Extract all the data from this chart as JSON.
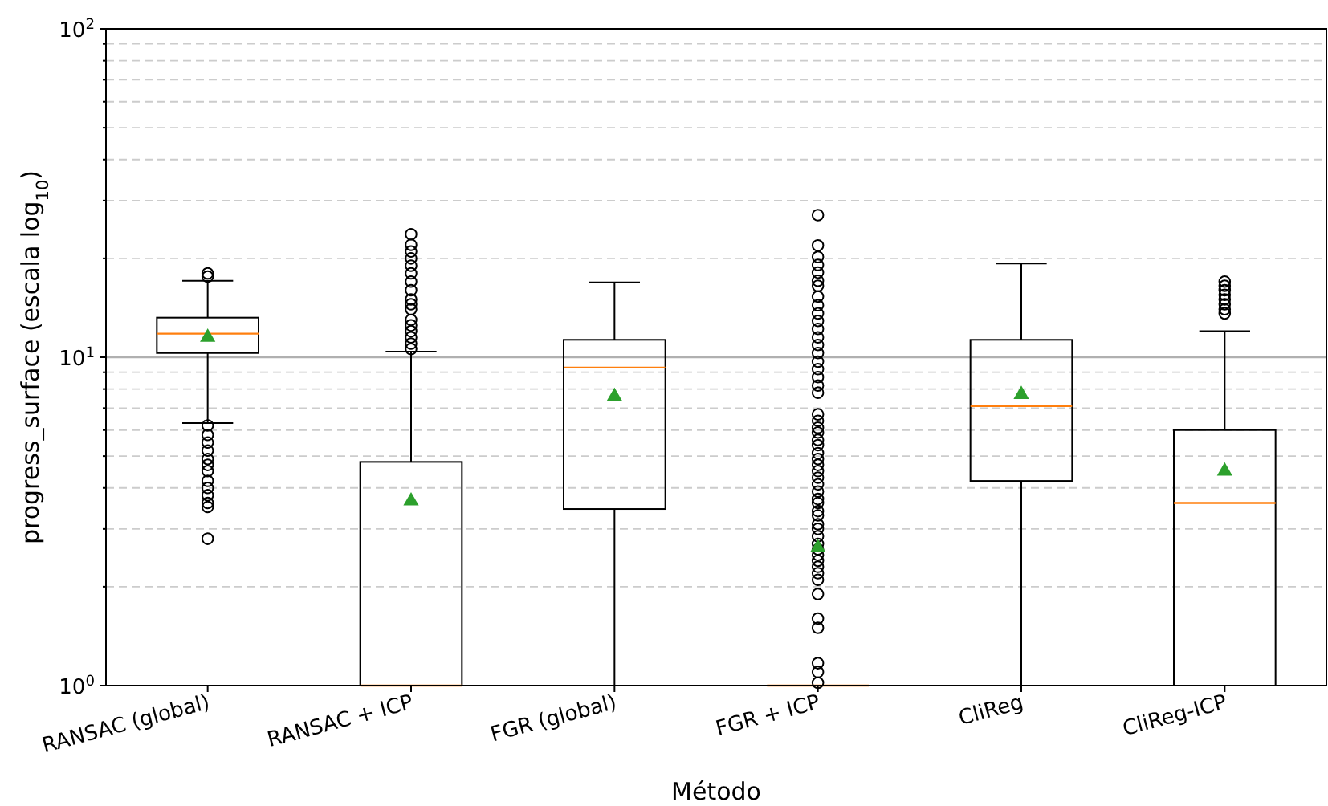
{
  "chart_data": {
    "type": "box",
    "xlabel": "Método",
    "ylabel": "progress_surface (escala log$_{10}$)",
    "categories": [
      "RANSAC (global)",
      "RANSAC + ICP",
      "FGR (global)",
      "FGR + ICP",
      "CliReg",
      "CliReg-ICP"
    ],
    "log": "y",
    "ylim": [
      1,
      100
    ],
    "yticks": [
      {
        "value": 1,
        "label": "10$^{0}$"
      },
      {
        "value": 2,
        "label": null
      },
      {
        "value": 3,
        "label": null
      },
      {
        "value": 4,
        "label": null
      },
      {
        "value": 5,
        "label": null
      },
      {
        "value": 6,
        "label": null
      },
      {
        "value": 7,
        "label": null
      },
      {
        "value": 8,
        "label": null
      },
      {
        "value": 9,
        "label": null
      },
      {
        "value": 10,
        "label": "10$^{1}$"
      },
      {
        "value": 20,
        "label": null
      },
      {
        "value": 30,
        "label": null
      },
      {
        "value": 40,
        "label": null
      },
      {
        "value": 50,
        "label": null
      },
      {
        "value": 60,
        "label": null
      },
      {
        "value": 70,
        "label": null
      },
      {
        "value": 80,
        "label": null
      },
      {
        "value": 90,
        "label": null
      },
      {
        "value": 100,
        "label": "10$^{2}$"
      }
    ],
    "grid": "y",
    "ref_lines": [
      {
        "axis": "y",
        "value": 10,
        "color": "#b0b0b0",
        "line_style": "solid"
      }
    ],
    "marker": "circle",
    "boxes": [
      {
        "low": 6.3,
        "q1": 10.3,
        "median": 11.8,
        "q3": 13.2,
        "high": 17.1,
        "mean": 11.5,
        "outliers": [
          18,
          17.6,
          6.2,
          5.8,
          5.5,
          5.2,
          4.9,
          4.7,
          4.5,
          4.2,
          4.0,
          3.8,
          3.6,
          3.5,
          2.8
        ]
      },
      {
        "low": 1,
        "q1": 1,
        "median": 1,
        "q3": 4.8,
        "high": 10.4,
        "mean": 3.65,
        "outliers": [
          10.6,
          11,
          11.5,
          12,
          12.5,
          13,
          14,
          14.5,
          15,
          16,
          17,
          18,
          19,
          20,
          21,
          22,
          23.7
        ]
      },
      {
        "low": 1,
        "q1": 3.45,
        "median": 9.3,
        "q3": 11.3,
        "high": 16.9,
        "mean": 7.6
      },
      {
        "low": 1,
        "q1": 1,
        "median": 1,
        "q3": 1,
        "high": 1,
        "mean": 2.63,
        "outliers": [
          27.1,
          21.9,
          20.2,
          19.1,
          18.1,
          17.1,
          16.5,
          15.3,
          14.4,
          13.6,
          12.9,
          12.2,
          11.5,
          10.9,
          10.3,
          9.7,
          9.2,
          8.7,
          8.2,
          7.8,
          6.7,
          6.4,
          6.1,
          5.9,
          5.6,
          5.4,
          5.1,
          4.9,
          4.7,
          4.5,
          4.3,
          4.1,
          3.9,
          3.7,
          3.6,
          3.4,
          3.3,
          3.1,
          3.0,
          2.85,
          2.7,
          2.6,
          2.5,
          2.4,
          2.3,
          2.2,
          2.1,
          1.9,
          1.6,
          1.5,
          1.17,
          1.1,
          1.02
        ]
      },
      {
        "low": 1,
        "q1": 4.2,
        "median": 7.1,
        "q3": 11.3,
        "high": 19.3,
        "mean": 7.7
      },
      {
        "low": 1,
        "q1": 1,
        "median": 3.6,
        "q3": 6.0,
        "high": 12.0,
        "mean": 4.5,
        "outliers": [
          17,
          16.5,
          16,
          15.5,
          15,
          14.5,
          14,
          13.6
        ]
      }
    ]
  }
}
